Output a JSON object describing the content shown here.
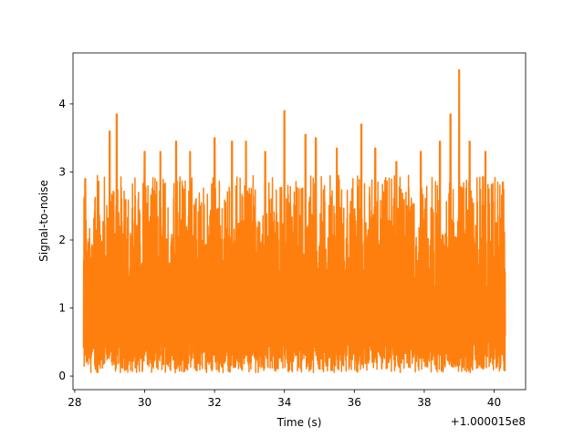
{
  "chart_data": {
    "type": "line",
    "title": "",
    "xlabel": "Time (s)",
    "ylabel": "Signal-to-noise",
    "x_offset_label": "+1.000015e8",
    "xlim": [
      27.95,
      40.9
    ],
    "ylim": [
      -0.2,
      4.75
    ],
    "xticks": [
      28,
      30,
      32,
      34,
      36,
      38,
      40
    ],
    "xtick_labels": [
      "28",
      "30",
      "32",
      "34",
      "36",
      "38",
      "40"
    ],
    "yticks": [
      0,
      1,
      2,
      3,
      4
    ],
    "ytick_labels": [
      "0",
      "1",
      "2",
      "3",
      "4"
    ],
    "grid": false,
    "series": [
      {
        "color": "#ff7f0e",
        "x_start": 28.25,
        "x_end": 40.32,
        "peaks": [
          {
            "x": 28.3,
            "y": 2.9
          },
          {
            "x": 29.0,
            "y": 3.6
          },
          {
            "x": 29.2,
            "y": 3.85
          },
          {
            "x": 30.0,
            "y": 3.3
          },
          {
            "x": 30.45,
            "y": 3.3
          },
          {
            "x": 30.9,
            "y": 3.45
          },
          {
            "x": 31.3,
            "y": 3.3
          },
          {
            "x": 32.0,
            "y": 3.5
          },
          {
            "x": 32.5,
            "y": 3.45
          },
          {
            "x": 32.9,
            "y": 3.45
          },
          {
            "x": 33.45,
            "y": 3.3
          },
          {
            "x": 34.0,
            "y": 3.9
          },
          {
            "x": 34.6,
            "y": 3.55
          },
          {
            "x": 34.9,
            "y": 3.5
          },
          {
            "x": 35.5,
            "y": 3.35
          },
          {
            "x": 36.2,
            "y": 3.7
          },
          {
            "x": 36.6,
            "y": 3.35
          },
          {
            "x": 37.2,
            "y": 3.15
          },
          {
            "x": 37.9,
            "y": 3.3
          },
          {
            "x": 38.45,
            "y": 3.45
          },
          {
            "x": 38.75,
            "y": 3.85
          },
          {
            "x": 39.0,
            "y": 4.5
          },
          {
            "x": 39.3,
            "y": 3.45
          },
          {
            "x": 39.75,
            "y": 3.3
          },
          {
            "x": 40.25,
            "y": 2.85
          }
        ],
        "baseline_range": [
          0.05,
          2.9
        ]
      }
    ]
  }
}
